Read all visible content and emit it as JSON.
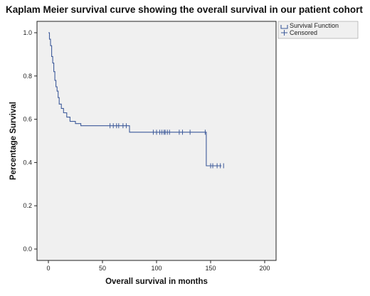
{
  "chart_data": {
    "type": "line",
    "title": "Kaplam Meier survival curve showing the overall survival in our patient cohort",
    "xlabel": "Overall survival in months",
    "ylabel": "Percentage Survival",
    "xlim": [
      0,
      200
    ],
    "ylim": [
      0.0,
      1.0
    ],
    "xticks": [
      "0",
      "50",
      "100",
      "150",
      "200"
    ],
    "yticks": [
      "0.0",
      "0.2",
      "0.4",
      "0.6",
      "0.8",
      "1.0"
    ],
    "grid": false,
    "legend_position": "top-right",
    "series": [
      {
        "name": "Survival Function",
        "step": true,
        "x": [
          0,
          1,
          2,
          3,
          4,
          5,
          6,
          7,
          8,
          9,
          10,
          12,
          14,
          17,
          20,
          25,
          30,
          75,
          146,
          160
        ],
        "y": [
          1.0,
          0.97,
          0.94,
          0.89,
          0.86,
          0.82,
          0.78,
          0.75,
          0.73,
          0.7,
          0.67,
          0.65,
          0.63,
          0.61,
          0.59,
          0.58,
          0.57,
          0.54,
          0.385,
          0.385
        ]
      },
      {
        "name": "Censored",
        "marker": "+",
        "points": [
          [
            57,
            0.57
          ],
          [
            60,
            0.57
          ],
          [
            63,
            0.57
          ],
          [
            65,
            0.57
          ],
          [
            69,
            0.57
          ],
          [
            72,
            0.57
          ],
          [
            97,
            0.54
          ],
          [
            100,
            0.54
          ],
          [
            103,
            0.54
          ],
          [
            105,
            0.54
          ],
          [
            107,
            0.54
          ],
          [
            108,
            0.54
          ],
          [
            110,
            0.54
          ],
          [
            112,
            0.54
          ],
          [
            121,
            0.54
          ],
          [
            124,
            0.54
          ],
          [
            131,
            0.54
          ],
          [
            145,
            0.54
          ],
          [
            150,
            0.385
          ],
          [
            152,
            0.385
          ],
          [
            156,
            0.385
          ],
          [
            159,
            0.385
          ],
          [
            162,
            0.385
          ]
        ]
      }
    ]
  },
  "colors": {
    "series": "#3d5a9a",
    "plot_bg": "#f0f0f0",
    "axis": "#222222",
    "legend_bg": "#f0f0f0"
  }
}
